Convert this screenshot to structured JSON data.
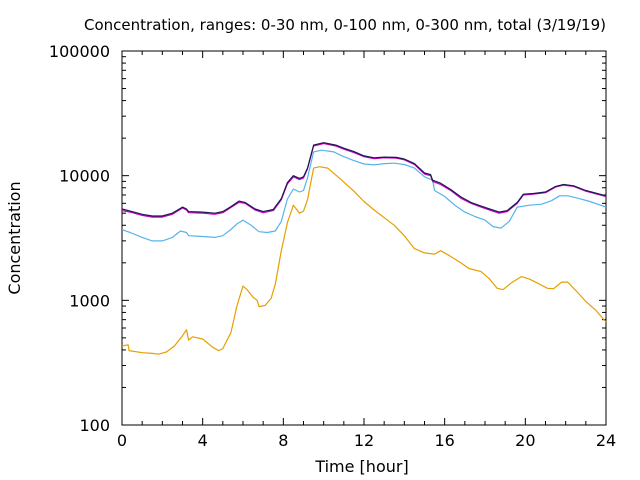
{
  "chart_data": {
    "type": "line",
    "title": "Concentration, ranges: 0-30 nm, 0-100 nm, 0-300 nm, total (3/19/19)",
    "xlabel": "Time [hour]",
    "ylabel": "Concentration",
    "xlim": [
      0,
      24
    ],
    "ylim": [
      100,
      100000
    ],
    "yscale": "log",
    "grid": false,
    "xticks": [
      "0",
      "4",
      "8",
      "12",
      "16",
      "20",
      "24"
    ],
    "yticks": [
      "100",
      "1000",
      "10000",
      "100000"
    ],
    "series": [
      {
        "color": "#e69f00",
        "points": [
          [
            0,
            430
          ],
          [
            0.3,
            440
          ],
          [
            0.35,
            395
          ],
          [
            1,
            380
          ],
          [
            1.5,
            375
          ],
          [
            1.8,
            370
          ],
          [
            2.2,
            385
          ],
          [
            2.6,
            430
          ],
          [
            3,
            520
          ],
          [
            3.2,
            580
          ],
          [
            3.3,
            480
          ],
          [
            3.5,
            510
          ],
          [
            4,
            490
          ],
          [
            4.5,
            420
          ],
          [
            4.8,
            395
          ],
          [
            5,
            410
          ],
          [
            5.4,
            550
          ],
          [
            5.7,
            900
          ],
          [
            6,
            1300
          ],
          [
            6.2,
            1220
          ],
          [
            6.5,
            1060
          ],
          [
            6.7,
            1000
          ],
          [
            6.8,
            890
          ],
          [
            7.1,
            910
          ],
          [
            7.4,
            1040
          ],
          [
            7.6,
            1350
          ],
          [
            7.9,
            2500
          ],
          [
            8.2,
            4200
          ],
          [
            8.5,
            5800
          ],
          [
            8.8,
            5000
          ],
          [
            9,
            5200
          ],
          [
            9.2,
            6400
          ],
          [
            9.5,
            11500
          ],
          [
            9.8,
            11800
          ],
          [
            10.2,
            11500
          ],
          [
            10.8,
            9500
          ],
          [
            11.5,
            7500
          ],
          [
            12,
            6200
          ],
          [
            12.5,
            5300
          ],
          [
            13,
            4600
          ],
          [
            13.5,
            4000
          ],
          [
            14,
            3300
          ],
          [
            14.5,
            2600
          ],
          [
            15,
            2400
          ],
          [
            15.5,
            2350
          ],
          [
            15.8,
            2500
          ],
          [
            16.2,
            2300
          ],
          [
            16.8,
            2000
          ],
          [
            17.2,
            1800
          ],
          [
            17.8,
            1700
          ],
          [
            18.2,
            1500
          ],
          [
            18.6,
            1250
          ],
          [
            18.9,
            1220
          ],
          [
            19.3,
            1380
          ],
          [
            19.8,
            1550
          ],
          [
            20.2,
            1480
          ],
          [
            20.7,
            1350
          ],
          [
            21.1,
            1250
          ],
          [
            21.4,
            1240
          ],
          [
            21.8,
            1400
          ],
          [
            22.1,
            1400
          ],
          [
            22.5,
            1200
          ],
          [
            23,
            980
          ],
          [
            23.5,
            830
          ],
          [
            24,
            670
          ]
        ]
      },
      {
        "color": "#56b4e9",
        "points": [
          [
            0,
            3700
          ],
          [
            0.4,
            3500
          ],
          [
            1,
            3200
          ],
          [
            1.5,
            3000
          ],
          [
            2,
            3000
          ],
          [
            2.5,
            3200
          ],
          [
            2.9,
            3600
          ],
          [
            3.2,
            3500
          ],
          [
            3.3,
            3300
          ],
          [
            4,
            3250
          ],
          [
            4.6,
            3200
          ],
          [
            5,
            3300
          ],
          [
            5.4,
            3700
          ],
          [
            5.7,
            4100
          ],
          [
            6,
            4400
          ],
          [
            6.4,
            4000
          ],
          [
            6.8,
            3550
          ],
          [
            7.2,
            3500
          ],
          [
            7.6,
            3600
          ],
          [
            7.9,
            4300
          ],
          [
            8.2,
            6500
          ],
          [
            8.5,
            7800
          ],
          [
            8.8,
            7400
          ],
          [
            9,
            7600
          ],
          [
            9.2,
            9600
          ],
          [
            9.5,
            15500
          ],
          [
            9.9,
            16000
          ],
          [
            10.5,
            15500
          ],
          [
            11,
            14200
          ],
          [
            11.5,
            13200
          ],
          [
            12,
            12400
          ],
          [
            12.5,
            12200
          ],
          [
            13,
            12500
          ],
          [
            13.5,
            12600
          ],
          [
            14,
            12300
          ],
          [
            14.5,
            11500
          ],
          [
            15,
            9800
          ],
          [
            15.4,
            9200
          ],
          [
            15.5,
            7600
          ],
          [
            16,
            6800
          ],
          [
            16.5,
            5800
          ],
          [
            17,
            5100
          ],
          [
            17.5,
            4700
          ],
          [
            18,
            4400
          ],
          [
            18.4,
            3900
          ],
          [
            18.8,
            3800
          ],
          [
            19.2,
            4300
          ],
          [
            19.6,
            5600
          ],
          [
            20.2,
            5800
          ],
          [
            20.8,
            5900
          ],
          [
            21.3,
            6300
          ],
          [
            21.7,
            6900
          ],
          [
            22.1,
            6900
          ],
          [
            22.6,
            6600
          ],
          [
            23.2,
            6200
          ],
          [
            24,
            5600
          ]
        ]
      },
      {
        "color": "#cc00cc",
        "points": [
          [
            0,
            5250
          ],
          [
            0.4,
            5100
          ],
          [
            1,
            4800
          ],
          [
            1.5,
            4650
          ],
          [
            2,
            4650
          ],
          [
            2.5,
            4900
          ],
          [
            3,
            5500
          ],
          [
            3.2,
            5300
          ],
          [
            3.3,
            5050
          ],
          [
            4,
            5000
          ],
          [
            4.6,
            4900
          ],
          [
            5,
            5050
          ],
          [
            5.4,
            5550
          ],
          [
            5.8,
            6100
          ],
          [
            6.1,
            6000
          ],
          [
            6.6,
            5300
          ],
          [
            7,
            5050
          ],
          [
            7.5,
            5250
          ],
          [
            7.9,
            6400
          ],
          [
            8.2,
            8600
          ],
          [
            8.5,
            9800
          ],
          [
            8.8,
            9300
          ],
          [
            9,
            9600
          ],
          [
            9.2,
            11300
          ],
          [
            9.5,
            17300
          ],
          [
            10,
            18100
          ],
          [
            10.6,
            17300
          ],
          [
            11,
            16300
          ],
          [
            11.5,
            15300
          ],
          [
            12,
            14200
          ],
          [
            12.5,
            13700
          ],
          [
            13,
            13900
          ],
          [
            13.6,
            13800
          ],
          [
            14,
            13400
          ],
          [
            14.5,
            12300
          ],
          [
            15,
            10300
          ],
          [
            15.3,
            10000
          ],
          [
            15.4,
            9000
          ],
          [
            15.8,
            8500
          ],
          [
            16.3,
            7600
          ],
          [
            16.8,
            6600
          ],
          [
            17.3,
            6000
          ],
          [
            17.8,
            5600
          ],
          [
            18.3,
            5250
          ],
          [
            18.7,
            5000
          ],
          [
            19.1,
            5150
          ],
          [
            19.6,
            6000
          ],
          [
            19.9,
            7000
          ],
          [
            20.4,
            7100
          ],
          [
            21,
            7300
          ],
          [
            21.5,
            8100
          ],
          [
            21.9,
            8400
          ],
          [
            22.4,
            8200
          ],
          [
            23,
            7500
          ],
          [
            24,
            6800
          ]
        ]
      },
      {
        "color": "#1a1a4d",
        "points": [
          [
            0,
            5400
          ],
          [
            0.4,
            5200
          ],
          [
            1,
            4900
          ],
          [
            1.5,
            4750
          ],
          [
            2,
            4750
          ],
          [
            2.5,
            5000
          ],
          [
            3,
            5600
          ],
          [
            3.2,
            5400
          ],
          [
            3.3,
            5150
          ],
          [
            4,
            5100
          ],
          [
            4.6,
            5000
          ],
          [
            5,
            5150
          ],
          [
            5.4,
            5650
          ],
          [
            5.8,
            6250
          ],
          [
            6.1,
            6100
          ],
          [
            6.6,
            5400
          ],
          [
            7,
            5150
          ],
          [
            7.5,
            5350
          ],
          [
            7.9,
            6550
          ],
          [
            8.2,
            8800
          ],
          [
            8.5,
            10000
          ],
          [
            8.8,
            9500
          ],
          [
            9,
            9800
          ],
          [
            9.2,
            11500
          ],
          [
            9.5,
            17600
          ],
          [
            10,
            18400
          ],
          [
            10.6,
            17600
          ],
          [
            11,
            16600
          ],
          [
            11.5,
            15600
          ],
          [
            12,
            14400
          ],
          [
            12.5,
            13900
          ],
          [
            13,
            14100
          ],
          [
            13.6,
            14000
          ],
          [
            14,
            13600
          ],
          [
            14.5,
            12500
          ],
          [
            15,
            10500
          ],
          [
            15.3,
            10200
          ],
          [
            15.4,
            9200
          ],
          [
            15.8,
            8700
          ],
          [
            16.3,
            7750
          ],
          [
            16.8,
            6750
          ],
          [
            17.3,
            6100
          ],
          [
            17.8,
            5700
          ],
          [
            18.3,
            5350
          ],
          [
            18.7,
            5100
          ],
          [
            19.1,
            5250
          ],
          [
            19.6,
            6100
          ],
          [
            19.9,
            7100
          ],
          [
            20.4,
            7200
          ],
          [
            21,
            7400
          ],
          [
            21.5,
            8200
          ],
          [
            21.9,
            8500
          ],
          [
            22.4,
            8300
          ],
          [
            23,
            7600
          ],
          [
            24,
            6900
          ]
        ]
      }
    ]
  }
}
